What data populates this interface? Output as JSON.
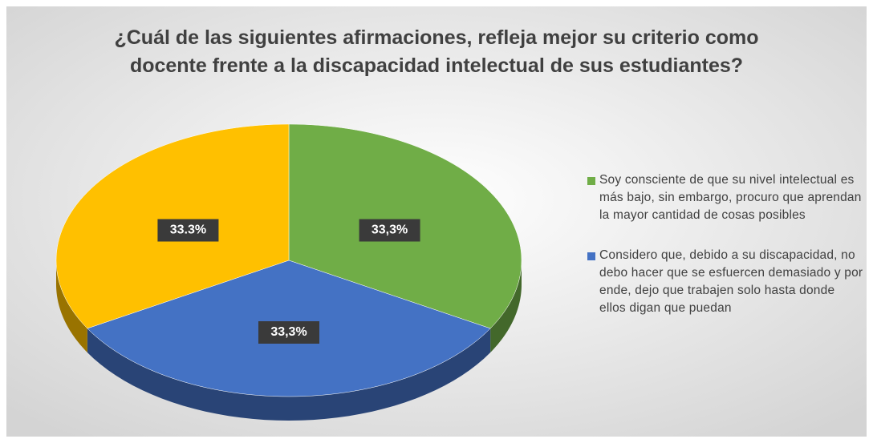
{
  "chart_data": {
    "type": "pie",
    "title": "¿Cuál de las siguientes afirmaciones, refleja mejor su criterio como docente frente a la discapacidad intelectual de sus estudiantes?",
    "categories": [
      "Soy consciente de que su nivel intelectual es más bajo, sin embargo, procuro que aprendan la mayor cantidad de cosas posibles",
      "Considero que, debido a su discapacidad, no debo hacer que se esfuercen demasiado y por ende, dejo que trabajen solo hasta donde ellos digan que puedan",
      null
    ],
    "values": [
      33.3,
      33.3,
      33.3
    ],
    "value_labels": [
      "33,3%",
      "33,3%",
      "33.3%"
    ],
    "colors": [
      "#70ad47",
      "#4472c4",
      "#ffc000"
    ],
    "legend": "right"
  }
}
